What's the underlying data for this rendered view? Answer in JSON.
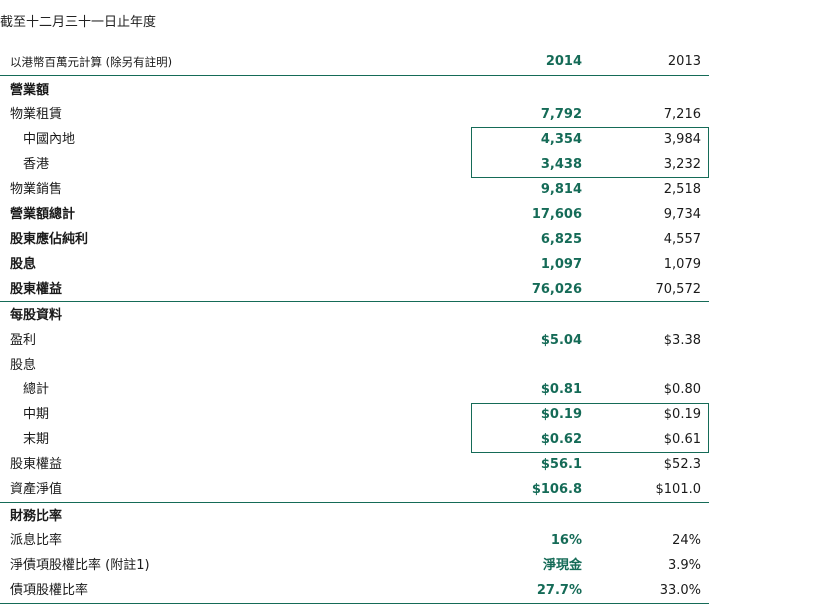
{
  "caption": "截至十二月三十一日止年度",
  "header": {
    "label": "以港幣百萬元計算 (除另有註明)",
    "y2014": "2014",
    "y2013": "2013"
  },
  "section1": {
    "title": "營業額",
    "rows": [
      {
        "label": "物業租賃",
        "v2014": "7,792",
        "v2013": "7,216"
      },
      {
        "label": "中國內地",
        "v2014": "4,354",
        "v2013": "3,984"
      },
      {
        "label": "香港",
        "v2014": "3,438",
        "v2013": "3,232"
      },
      {
        "label": "物業銷售",
        "v2014": "9,814",
        "v2013": "2,518"
      },
      {
        "label": "營業額總計",
        "v2014": "17,606",
        "v2013": "9,734"
      },
      {
        "label": "股東應佔純利",
        "v2014": "6,825",
        "v2013": "4,557"
      },
      {
        "label": "股息",
        "v2014": "1,097",
        "v2013": "1,079"
      },
      {
        "label": "股東權益",
        "v2014": "76,026",
        "v2013": "70,572"
      }
    ]
  },
  "section2": {
    "title": "每股資料",
    "rows": [
      {
        "label": "盈利",
        "v2014": "$5.04",
        "v2013": "$3.38"
      },
      {
        "label": "股息",
        "v2014": "",
        "v2013": ""
      },
      {
        "label": "總計",
        "v2014": "$0.81",
        "v2013": "$0.80"
      },
      {
        "label": "中期",
        "v2014": "$0.19",
        "v2013": "$0.19"
      },
      {
        "label": "末期",
        "v2014": "$0.62",
        "v2013": "$0.61"
      },
      {
        "label": "股東權益",
        "v2014": "$56.1",
        "v2013": "$52.3"
      },
      {
        "label": "資產淨值",
        "v2014": "$106.8",
        "v2013": "$101.0"
      }
    ]
  },
  "section3": {
    "title": "財務比率",
    "rows": [
      {
        "label": "派息比率",
        "v2014": "16%",
        "v2013": "24%"
      },
      {
        "label": "淨債項股權比率 (附註1)",
        "v2014": "淨現金",
        "v2013": "3.9%"
      },
      {
        "label": "債項股權比率",
        "v2014": "27.7%",
        "v2013": "33.0%"
      }
    ]
  },
  "colors": {
    "accent": "#156b57",
    "text": "#1a1a1a"
  }
}
